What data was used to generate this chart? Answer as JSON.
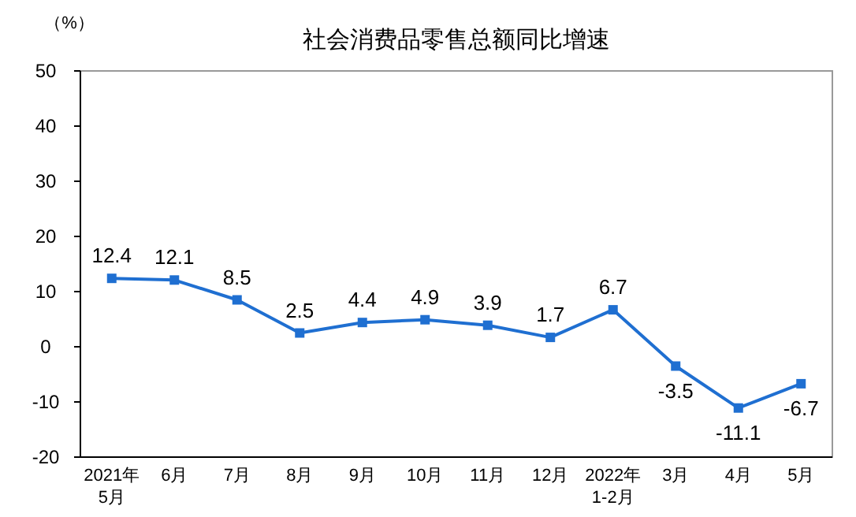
{
  "chart_data": {
    "type": "line",
    "title": "社会消费品零售总额同比增速",
    "ylabel": "（%）",
    "categories": [
      "2021年\n5月",
      "6月",
      "7月",
      "8月",
      "9月",
      "10月",
      "11月",
      "12月",
      "2022年\n1-2月",
      "3月",
      "4月",
      "5月"
    ],
    "series": [
      {
        "color": "#1f6fd1",
        "values": [
          12.4,
          12.1,
          8.5,
          2.5,
          4.4,
          4.9,
          3.9,
          1.7,
          6.7,
          -3.5,
          -11.1,
          -6.7
        ]
      }
    ],
    "ylim": [
      -20,
      50
    ],
    "yticks": [
      -20,
      -10,
      0,
      10,
      20,
      30,
      40,
      50
    ],
    "grid": false,
    "marker": "square",
    "line_style": "solid",
    "data_labels": true
  }
}
